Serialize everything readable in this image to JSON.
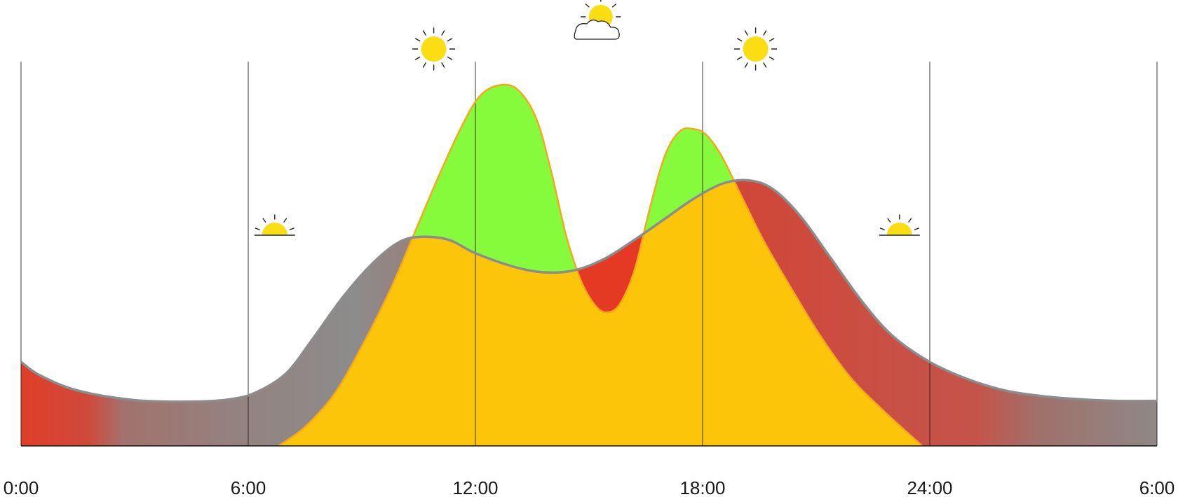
{
  "chart_data": {
    "type": "area",
    "title": "",
    "xlabel": "",
    "ylabel": "",
    "x_ticks": [
      "0:00",
      "6:00",
      "12:00",
      "18:00",
      "24:00",
      "6:00"
    ],
    "x_tick_hours": [
      0,
      6,
      12,
      18,
      24,
      30
    ],
    "xlim": [
      0,
      30
    ],
    "ylim": [
      0,
      1
    ],
    "grid": "vertical lines at tick hours",
    "series": [
      {
        "key": "consumption",
        "style": "gray outlined area, fill graded red to gray",
        "points": [
          [
            0,
            0.22
          ],
          [
            0.5,
            0.185
          ],
          [
            1.5,
            0.145
          ],
          [
            3,
            0.12
          ],
          [
            4.5,
            0.116
          ],
          [
            5.5,
            0.122
          ],
          [
            6.2,
            0.14
          ],
          [
            7,
            0.19
          ],
          [
            7.7,
            0.28
          ],
          [
            8.5,
            0.39
          ],
          [
            9.3,
            0.48
          ],
          [
            10.0,
            0.535
          ],
          [
            10.6,
            0.548
          ],
          [
            11.3,
            0.54
          ],
          [
            12,
            0.505
          ],
          [
            13,
            0.47
          ],
          [
            13.8,
            0.455
          ],
          [
            14.6,
            0.46
          ],
          [
            15.4,
            0.49
          ],
          [
            16.2,
            0.54
          ],
          [
            17,
            0.595
          ],
          [
            17.8,
            0.65
          ],
          [
            18.6,
            0.69
          ],
          [
            19.3,
            0.695
          ],
          [
            19.9,
            0.67
          ],
          [
            20.6,
            0.6
          ],
          [
            21.4,
            0.49
          ],
          [
            22.2,
            0.38
          ],
          [
            23,
            0.29
          ],
          [
            24,
            0.22
          ],
          [
            25,
            0.175
          ],
          [
            26,
            0.145
          ],
          [
            27,
            0.13
          ],
          [
            28,
            0.122
          ],
          [
            29,
            0.118
          ],
          [
            30,
            0.118
          ]
        ]
      },
      {
        "key": "solar",
        "style": "orange outlined area, bright green where above consumption",
        "points": [
          [
            6.8,
            0.0
          ],
          [
            7.5,
            0.05
          ],
          [
            8.3,
            0.14
          ],
          [
            9.1,
            0.28
          ],
          [
            9.8,
            0.42
          ],
          [
            10.4,
            0.56
          ],
          [
            11,
            0.7
          ],
          [
            11.6,
            0.83
          ],
          [
            12.1,
            0.915
          ],
          [
            12.6,
            0.945
          ],
          [
            13.1,
            0.935
          ],
          [
            13.6,
            0.86
          ],
          [
            14.0,
            0.72
          ],
          [
            14.4,
            0.55
          ],
          [
            14.8,
            0.43
          ],
          [
            15.15,
            0.37
          ],
          [
            15.45,
            0.35
          ],
          [
            15.8,
            0.37
          ],
          [
            16.2,
            0.46
          ],
          [
            16.6,
            0.62
          ],
          [
            17.0,
            0.76
          ],
          [
            17.4,
            0.825
          ],
          [
            17.8,
            0.83
          ],
          [
            18.1,
            0.815
          ],
          [
            18.5,
            0.76
          ],
          [
            19.0,
            0.66
          ],
          [
            19.6,
            0.54
          ],
          [
            20.3,
            0.42
          ],
          [
            21.1,
            0.29
          ],
          [
            21.9,
            0.18
          ],
          [
            22.8,
            0.09
          ],
          [
            23.8,
            0.0
          ]
        ]
      }
    ],
    "weather_icons": [
      {
        "icon": "sunrise-icon",
        "hour": 6.7
      },
      {
        "icon": "sun-icon",
        "hour": 10.9
      },
      {
        "icon": "sun-behind-cloud-icon",
        "hour": 15.2
      },
      {
        "icon": "sun-icon",
        "hour": 19.4
      },
      {
        "icon": "sunset-icon",
        "hour": 23.2
      }
    ],
    "colors": {
      "consumption_line": "#8c8c8c",
      "deficit_red": "#e43a24",
      "excess_gray": "#8c8c8c",
      "solar_fill": "#fcc50a",
      "solar_line": "#f4a81c",
      "surplus_green": "#86fb3c",
      "dip_red": "#e43a24",
      "sun_yellow": "#fbdd14"
    }
  }
}
